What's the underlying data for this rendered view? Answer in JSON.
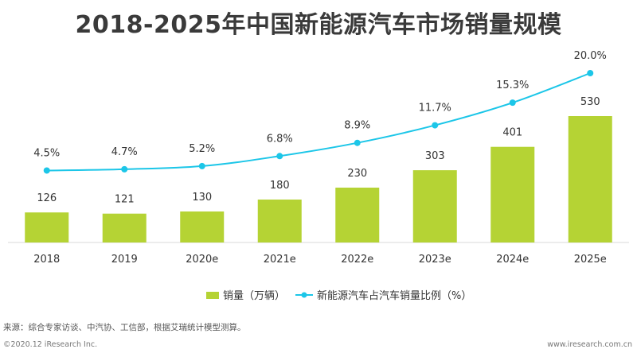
{
  "chart_data": {
    "type": "bar",
    "title": "2018-2025年中国新能源汽车市场销量规模",
    "categories": [
      "2018",
      "2019",
      "2020e",
      "2021e",
      "2022e",
      "2023e",
      "2024e",
      "2025e"
    ],
    "series": [
      {
        "name": "销量（万辆）",
        "type": "bar",
        "values": [
          126,
          121,
          130,
          180,
          230,
          303,
          401,
          530
        ],
        "labels": [
          "126",
          "121",
          "130",
          "180",
          "230",
          "303",
          "401",
          "530"
        ],
        "color": "#b5d334"
      },
      {
        "name": "新能源汽车占汽车销量比例（%）",
        "type": "line",
        "values": [
          4.5,
          4.7,
          5.2,
          6.8,
          8.9,
          11.7,
          15.3,
          20.0
        ],
        "labels": [
          "4.5%",
          "4.7%",
          "5.2%",
          "6.8%",
          "8.9%",
          "11.7%",
          "15.3%",
          "20.0%"
        ],
        "color": "#1cc6e8"
      }
    ],
    "legend_position": "bottom",
    "grid": false
  },
  "source": "来源：综合专家访谈、中汽协、工信部，根据艾瑞统计模型测算。",
  "footer": {
    "copyright": "©2020.12 iResearch Inc.",
    "website": "www.iresearch.com.cn"
  }
}
